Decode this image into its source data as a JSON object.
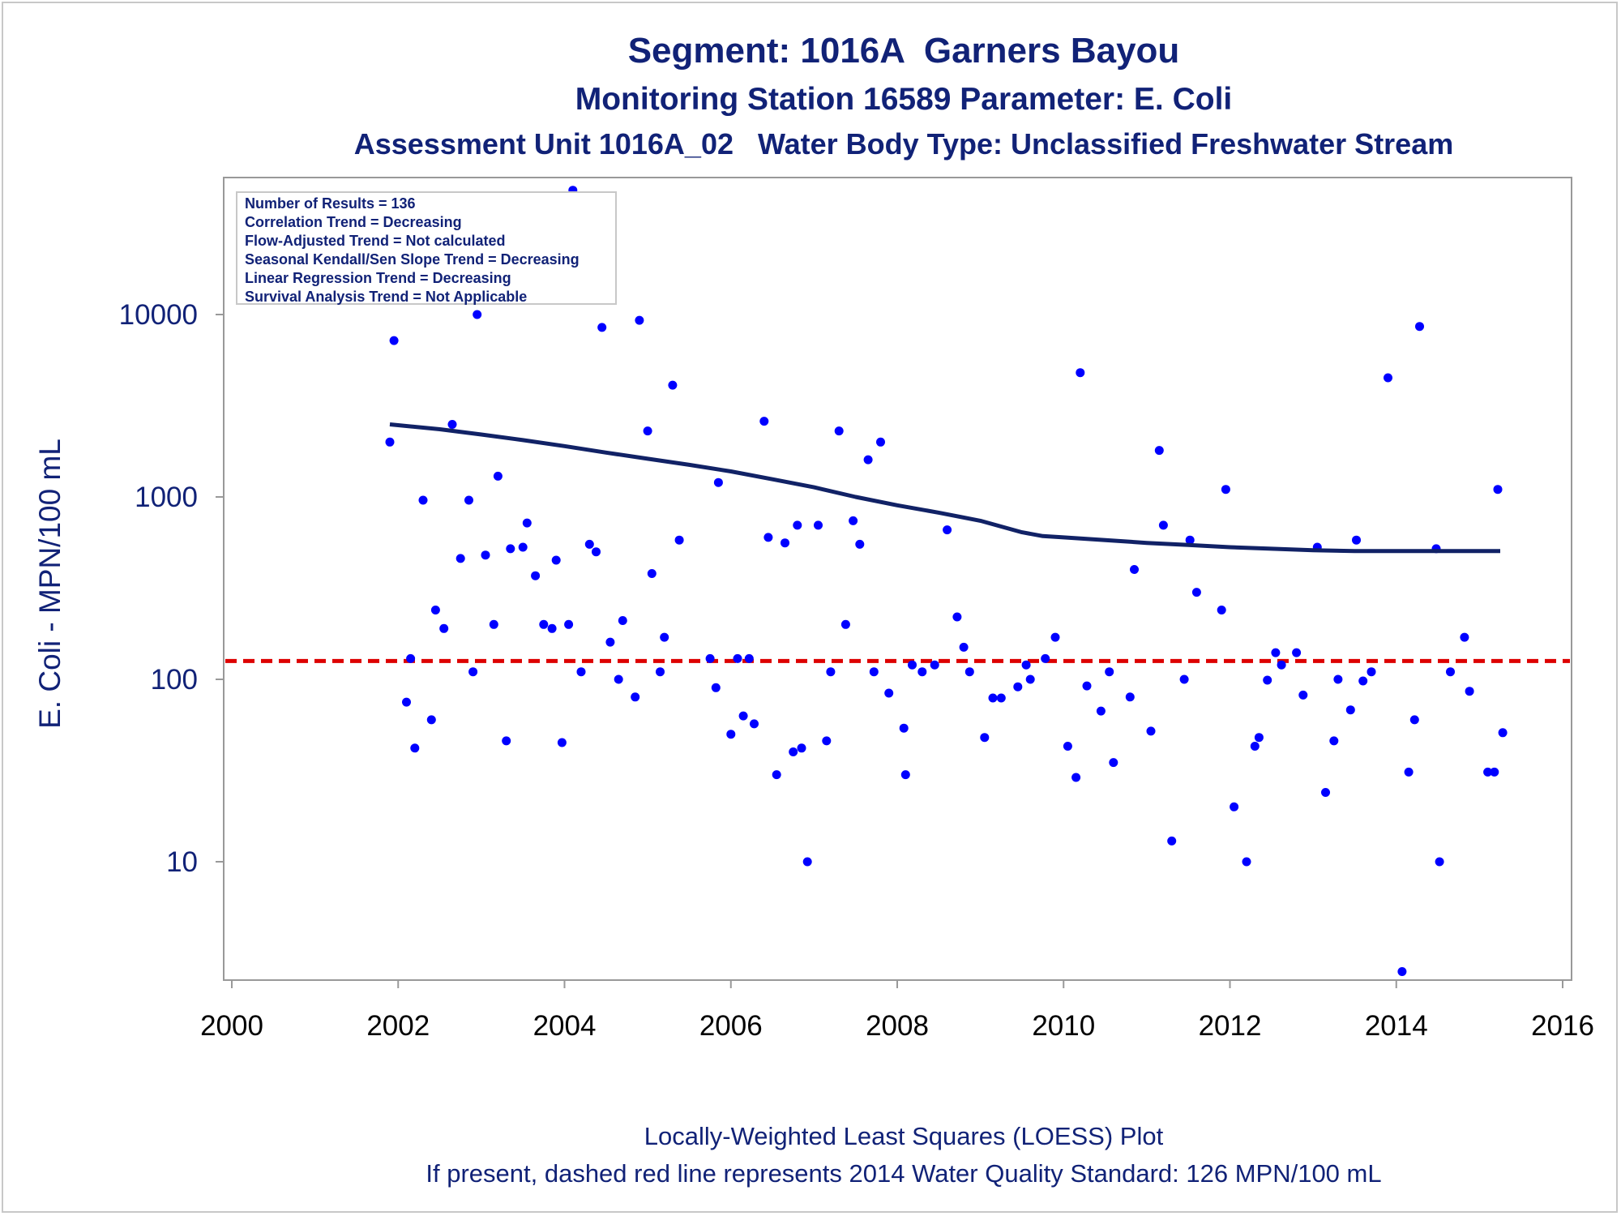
{
  "titles": {
    "line1": "Segment: 1016A  Garners Bayou",
    "line2": "Monitoring Station 16589 Parameter: E. Coli",
    "line3": "Assessment Unit 1016A_02   Water Body Type: Unclassified Freshwater Stream"
  },
  "legend": {
    "items": [
      "Number of Results = 136",
      "Correlation Trend = Decreasing",
      "Flow-Adjusted Trend = Not calculated",
      "Seasonal Kendall/Sen Slope Trend = Decreasing",
      "Linear Regression Trend = Decreasing",
      "Survival Analysis Trend = Not Applicable"
    ]
  },
  "footer": {
    "line1": "Locally-Weighted Least Squares (LOESS) Plot",
    "line2": "If present, dashed red line represents 2014 Water Quality Standard: 126 MPN/100 mL"
  },
  "colors": {
    "text": "#112277",
    "points": "#0000ff",
    "loess": "#112266",
    "standard": "#dd0000",
    "axis": "#999999"
  },
  "chart_data": {
    "type": "scatter",
    "ylabel": "E. Coli - MPN/100 mL",
    "xlabel": "",
    "x_ticks": [
      "2000",
      "2002",
      "2004",
      "2006",
      "2008",
      "2010",
      "2012",
      "2014",
      "2016"
    ],
    "y_ticks": [
      "10",
      "100",
      "1000",
      "10000"
    ],
    "y_scale": "log",
    "xlim": [
      2000,
      2016.2
    ],
    "ylim": [
      2.3,
      60000
    ],
    "standard_line": 126,
    "loess": [
      [
        2001.9,
        2500
      ],
      [
        2002.5,
        2350
      ],
      [
        2003.0,
        2200
      ],
      [
        2003.5,
        2050
      ],
      [
        2004.0,
        1900
      ],
      [
        2004.5,
        1750
      ],
      [
        2005.0,
        1620
      ],
      [
        2005.5,
        1500
      ],
      [
        2006.0,
        1380
      ],
      [
        2006.5,
        1250
      ],
      [
        2007.0,
        1130
      ],
      [
        2007.5,
        1000
      ],
      [
        2008.0,
        900
      ],
      [
        2008.5,
        820
      ],
      [
        2009.0,
        740
      ],
      [
        2009.5,
        640
      ],
      [
        2009.75,
        610
      ],
      [
        2010.0,
        600
      ],
      [
        2010.5,
        580
      ],
      [
        2011.0,
        560
      ],
      [
        2011.5,
        545
      ],
      [
        2012.0,
        530
      ],
      [
        2012.5,
        520
      ],
      [
        2013.0,
        510
      ],
      [
        2013.5,
        505
      ],
      [
        2014.0,
        505
      ],
      [
        2014.5,
        505
      ],
      [
        2015.0,
        505
      ],
      [
        2015.25,
        505
      ]
    ],
    "points": [
      [
        2001.9,
        2000
      ],
      [
        2001.95,
        7200
      ],
      [
        2002.1,
        75
      ],
      [
        2002.15,
        130
      ],
      [
        2002.2,
        42
      ],
      [
        2002.3,
        960
      ],
      [
        2002.4,
        60
      ],
      [
        2002.45,
        240
      ],
      [
        2002.55,
        190
      ],
      [
        2002.65,
        2500
      ],
      [
        2002.75,
        460
      ],
      [
        2002.85,
        960
      ],
      [
        2002.9,
        110
      ],
      [
        2002.95,
        10000
      ],
      [
        2003.05,
        480
      ],
      [
        2003.15,
        200
      ],
      [
        2003.2,
        1300
      ],
      [
        2003.3,
        46
      ],
      [
        2003.35,
        520
      ],
      [
        2003.5,
        530
      ],
      [
        2003.55,
        720
      ],
      [
        2003.65,
        370
      ],
      [
        2003.75,
        200
      ],
      [
        2003.85,
        190
      ],
      [
        2003.9,
        450
      ],
      [
        2003.97,
        45
      ],
      [
        2004.05,
        200
      ],
      [
        2004.1,
        48000
      ],
      [
        2004.2,
        110
      ],
      [
        2004.3,
        550
      ],
      [
        2004.38,
        500
      ],
      [
        2004.45,
        8500
      ],
      [
        2004.55,
        160
      ],
      [
        2004.65,
        100
      ],
      [
        2004.7,
        210
      ],
      [
        2004.85,
        80
      ],
      [
        2004.9,
        9300
      ],
      [
        2005.0,
        2300
      ],
      [
        2005.05,
        380
      ],
      [
        2005.15,
        110
      ],
      [
        2005.2,
        170
      ],
      [
        2005.3,
        4100
      ],
      [
        2005.38,
        580
      ],
      [
        2005.75,
        130
      ],
      [
        2005.82,
        90
      ],
      [
        2005.85,
        1200
      ],
      [
        2006.0,
        50
      ],
      [
        2006.08,
        130
      ],
      [
        2006.15,
        63
      ],
      [
        2006.22,
        130
      ],
      [
        2006.28,
        57
      ],
      [
        2006.4,
        2600
      ],
      [
        2006.45,
        600
      ],
      [
        2006.55,
        30
      ],
      [
        2006.65,
        560
      ],
      [
        2006.75,
        40
      ],
      [
        2006.8,
        700
      ],
      [
        2006.85,
        42
      ],
      [
        2006.92,
        10
      ],
      [
        2007.05,
        700
      ],
      [
        2007.15,
        46
      ],
      [
        2007.2,
        110
      ],
      [
        2007.3,
        2300
      ],
      [
        2007.38,
        200
      ],
      [
        2007.47,
        740
      ],
      [
        2007.55,
        550
      ],
      [
        2007.65,
        1600
      ],
      [
        2007.72,
        110
      ],
      [
        2007.8,
        2000
      ],
      [
        2007.9,
        84
      ],
      [
        2008.08,
        54
      ],
      [
        2008.1,
        30
      ],
      [
        2008.18,
        120
      ],
      [
        2008.3,
        110
      ],
      [
        2008.45,
        120
      ],
      [
        2008.6,
        660
      ],
      [
        2008.72,
        220
      ],
      [
        2008.8,
        150
      ],
      [
        2008.87,
        110
      ],
      [
        2009.05,
        48
      ],
      [
        2009.15,
        79
      ],
      [
        2009.25,
        79
      ],
      [
        2009.45,
        91
      ],
      [
        2009.55,
        120
      ],
      [
        2009.6,
        100
      ],
      [
        2009.78,
        130
      ],
      [
        2009.9,
        170
      ],
      [
        2010.05,
        43
      ],
      [
        2010.15,
        29
      ],
      [
        2010.2,
        4800
      ],
      [
        2010.28,
        92
      ],
      [
        2010.45,
        67
      ],
      [
        2010.55,
        110
      ],
      [
        2010.6,
        35
      ],
      [
        2010.8,
        80
      ],
      [
        2010.85,
        400
      ],
      [
        2011.05,
        52
      ],
      [
        2011.15,
        1800
      ],
      [
        2011.2,
        700
      ],
      [
        2011.3,
        13
      ],
      [
        2011.45,
        100
      ],
      [
        2011.52,
        580
      ],
      [
        2011.6,
        300
      ],
      [
        2011.9,
        240
      ],
      [
        2011.95,
        1100
      ],
      [
        2012.05,
        20
      ],
      [
        2012.2,
        10
      ],
      [
        2012.3,
        43
      ],
      [
        2012.35,
        48
      ],
      [
        2012.45,
        99
      ],
      [
        2012.55,
        140
      ],
      [
        2012.62,
        120
      ],
      [
        2012.8,
        140
      ],
      [
        2012.88,
        82
      ],
      [
        2013.05,
        530
      ],
      [
        2013.15,
        24
      ],
      [
        2013.25,
        46
      ],
      [
        2013.3,
        100
      ],
      [
        2013.45,
        68
      ],
      [
        2013.52,
        580
      ],
      [
        2013.6,
        98
      ],
      [
        2013.7,
        110
      ],
      [
        2013.9,
        4500
      ],
      [
        2014.07,
        2.5
      ],
      [
        2014.15,
        31
      ],
      [
        2014.22,
        60
      ],
      [
        2014.28,
        8600
      ],
      [
        2014.48,
        520
      ],
      [
        2014.52,
        10
      ],
      [
        2014.65,
        110
      ],
      [
        2014.82,
        170
      ],
      [
        2014.88,
        86
      ],
      [
        2015.1,
        31
      ],
      [
        2015.18,
        31
      ],
      [
        2015.22,
        1100
      ],
      [
        2015.28,
        51
      ]
    ]
  }
}
